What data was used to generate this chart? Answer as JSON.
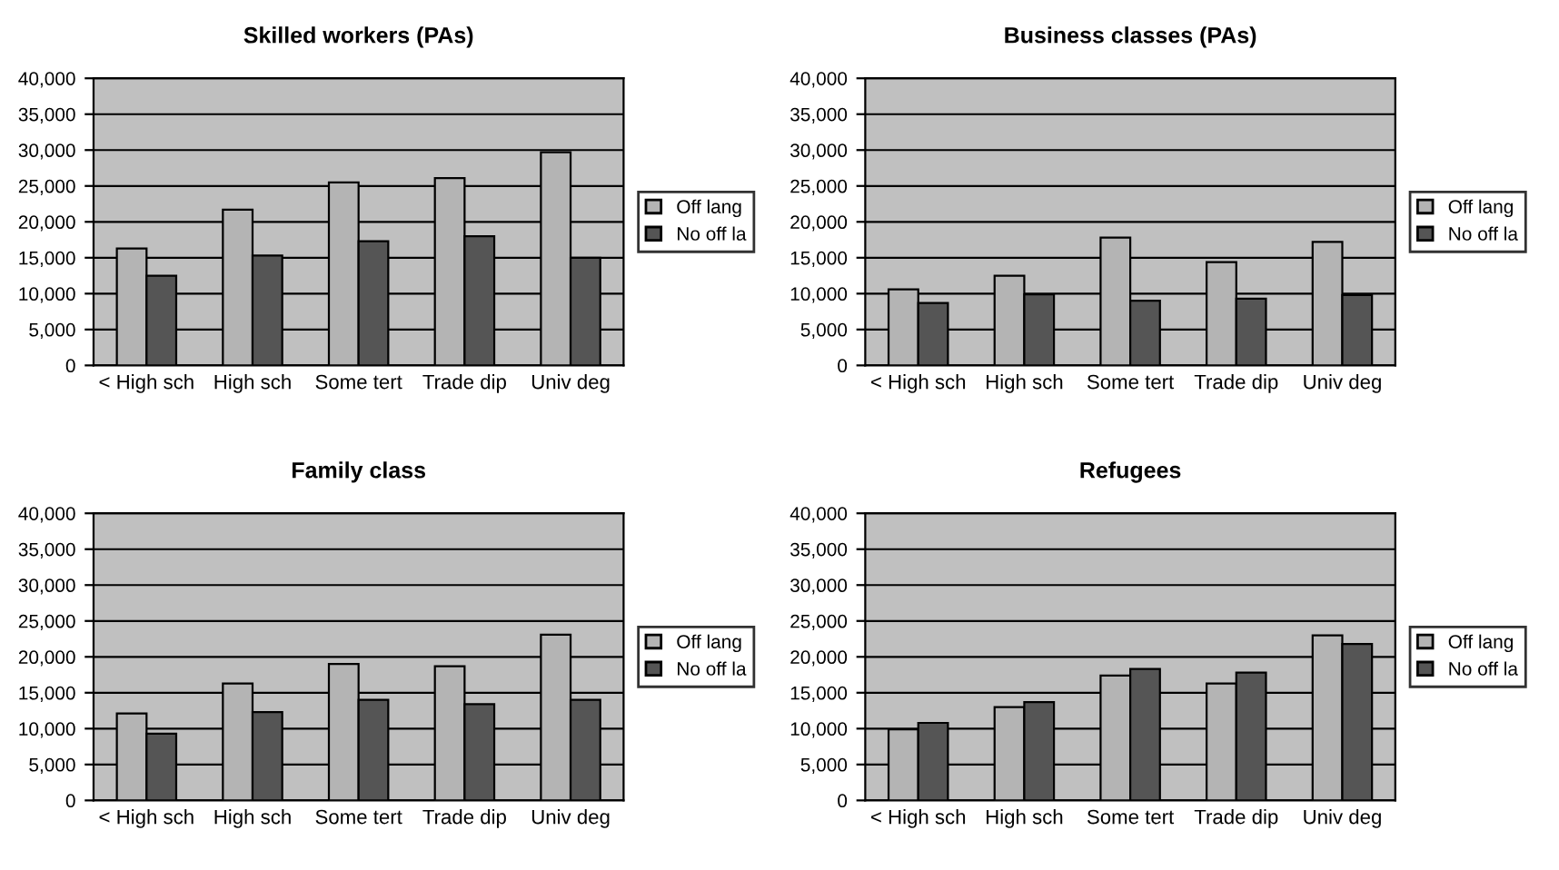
{
  "chart_data": [
    {
      "type": "bar",
      "title": "Skilled workers (PAs)",
      "categories": [
        "< High sch",
        "High sch",
        "Some tert",
        "Trade dip",
        "Univ deg"
      ],
      "series": [
        {
          "name": "Off lang",
          "color": "#b4b4b4",
          "values": [
            16300,
            21700,
            25500,
            26100,
            29700
          ]
        },
        {
          "name": "No off la",
          "color": "#555555",
          "values": [
            12500,
            15300,
            17300,
            18000,
            15000
          ]
        }
      ],
      "ylim": [
        0,
        40000
      ],
      "yticks": [
        {
          "value": 0,
          "label": "0"
        },
        {
          "value": 5000,
          "label": "5,000"
        },
        {
          "value": 10000,
          "label": "10,000"
        },
        {
          "value": 15000,
          "label": "15,000"
        },
        {
          "value": 20000,
          "label": "20,000"
        },
        {
          "value": 25000,
          "label": "25,000"
        },
        {
          "value": 30000,
          "label": "30,000"
        },
        {
          "value": 35000,
          "label": "35,000"
        },
        {
          "value": 40000,
          "label": "40,000"
        }
      ],
      "grid": "y",
      "legend": "right"
    },
    {
      "type": "bar",
      "title": "Business classes (PAs)",
      "categories": [
        "< High sch",
        "High sch",
        "Some tert",
        "Trade dip",
        "Univ deg"
      ],
      "series": [
        {
          "name": "Off lang",
          "color": "#b4b4b4",
          "values": [
            10600,
            12500,
            17800,
            14400,
            17200
          ]
        },
        {
          "name": "No off la",
          "color": "#555555",
          "values": [
            8700,
            9900,
            9000,
            9300,
            9800
          ]
        }
      ],
      "ylim": [
        0,
        40000
      ],
      "yticks": [
        {
          "value": 0,
          "label": "0"
        },
        {
          "value": 5000,
          "label": "5,000"
        },
        {
          "value": 10000,
          "label": "10,000"
        },
        {
          "value": 15000,
          "label": "15,000"
        },
        {
          "value": 20000,
          "label": "20,000"
        },
        {
          "value": 25000,
          "label": "25,000"
        },
        {
          "value": 30000,
          "label": "30,000"
        },
        {
          "value": 35000,
          "label": "35,000"
        },
        {
          "value": 40000,
          "label": "40,000"
        }
      ],
      "grid": "y",
      "legend": "right"
    },
    {
      "type": "bar",
      "title": "Family class",
      "categories": [
        "< High sch",
        "High sch",
        "Some tert",
        "Trade dip",
        "Univ deg"
      ],
      "series": [
        {
          "name": "Off lang",
          "color": "#b4b4b4",
          "values": [
            12100,
            16300,
            19000,
            18700,
            23100
          ]
        },
        {
          "name": "No off la",
          "color": "#555555",
          "values": [
            9300,
            12300,
            14000,
            13400,
            14000
          ]
        }
      ],
      "ylim": [
        0,
        40000
      ],
      "yticks": [
        {
          "value": 0,
          "label": "0"
        },
        {
          "value": 5000,
          "label": "5,000"
        },
        {
          "value": 10000,
          "label": "10,000"
        },
        {
          "value": 15000,
          "label": "15,000"
        },
        {
          "value": 20000,
          "label": "20,000"
        },
        {
          "value": 25000,
          "label": "25,000"
        },
        {
          "value": 30000,
          "label": "30,000"
        },
        {
          "value": 35000,
          "label": "35,000"
        },
        {
          "value": 40000,
          "label": "40,000"
        }
      ],
      "grid": "y",
      "legend": "right"
    },
    {
      "type": "bar",
      "title": "Refugees",
      "categories": [
        "< High sch",
        "High sch",
        "Some tert",
        "Trade dip",
        "Univ deg"
      ],
      "series": [
        {
          "name": "Off lang",
          "color": "#b4b4b4",
          "values": [
            9900,
            13000,
            17400,
            16300,
            23000
          ]
        },
        {
          "name": "No off la",
          "color": "#555555",
          "values": [
            10800,
            13700,
            18300,
            17800,
            21800
          ]
        }
      ],
      "ylim": [
        0,
        40000
      ],
      "yticks": [
        {
          "value": 0,
          "label": "0"
        },
        {
          "value": 5000,
          "label": "5,000"
        },
        {
          "value": 10000,
          "label": "10,000"
        },
        {
          "value": 15000,
          "label": "15,000"
        },
        {
          "value": 20000,
          "label": "20,000"
        },
        {
          "value": 25000,
          "label": "25,000"
        },
        {
          "value": 30000,
          "label": "30,000"
        },
        {
          "value": 35000,
          "label": "35,000"
        },
        {
          "value": 40000,
          "label": "40,000"
        }
      ],
      "grid": "y",
      "legend": "right"
    }
  ]
}
